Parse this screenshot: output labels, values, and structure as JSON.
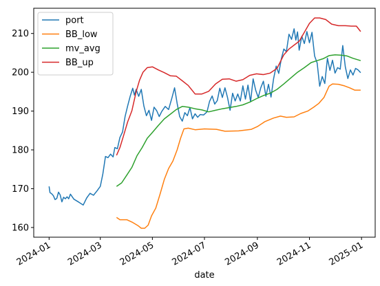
{
  "chart_data": {
    "type": "line",
    "title": "",
    "xlabel": "date",
    "ylabel": "",
    "x_ticks": [
      "2024-01",
      "2024-03",
      "2024-05",
      "2024-07",
      "2024-09",
      "2024-11",
      "2025-01"
    ],
    "y_ticks": [
      160,
      170,
      180,
      190,
      200,
      210
    ],
    "xlim": [
      "2023-12-14",
      "2025-01-17"
    ],
    "ylim": [
      157.5,
      216.5
    ],
    "grid": false,
    "legend_position": "top-left",
    "series": [
      {
        "name": "port",
        "color": "#1f77b4",
        "points": [
          [
            "2024-01-01",
            170.6
          ],
          [
            "2024-01-02",
            169.0
          ],
          [
            "2024-01-04",
            168.7
          ],
          [
            "2024-01-06",
            168.2
          ],
          [
            "2024-01-08",
            167.2
          ],
          [
            "2024-01-10",
            167.5
          ],
          [
            "2024-01-12",
            169.1
          ],
          [
            "2024-01-14",
            168.4
          ],
          [
            "2024-01-16",
            166.6
          ],
          [
            "2024-01-18",
            167.8
          ],
          [
            "2024-01-20",
            167.4
          ],
          [
            "2024-01-22",
            167.9
          ],
          [
            "2024-01-24",
            167.4
          ],
          [
            "2024-01-26",
            168.6
          ],
          [
            "2024-01-30",
            167.3
          ],
          [
            "2024-02-05",
            166.5
          ],
          [
            "2024-02-10",
            165.8
          ],
          [
            "2024-02-14",
            167.6
          ],
          [
            "2024-02-18",
            168.8
          ],
          [
            "2024-02-22",
            168.3
          ],
          [
            "2024-02-26",
            169.4
          ],
          [
            "2024-03-01",
            170.6
          ],
          [
            "2024-03-04",
            173.8
          ],
          [
            "2024-03-07",
            178.3
          ],
          [
            "2024-03-10",
            178.0
          ],
          [
            "2024-03-13",
            178.9
          ],
          [
            "2024-03-16",
            178.2
          ],
          [
            "2024-03-18",
            180.6
          ],
          [
            "2024-03-21",
            180.3
          ],
          [
            "2024-03-24",
            183.2
          ],
          [
            "2024-03-27",
            184.6
          ],
          [
            "2024-03-30",
            188.6
          ],
          [
            "2024-04-02",
            191.3
          ],
          [
            "2024-04-05",
            193.8
          ],
          [
            "2024-04-08",
            195.9
          ],
          [
            "2024-04-10",
            194.1
          ],
          [
            "2024-04-12",
            195.6
          ],
          [
            "2024-04-15",
            193.8
          ],
          [
            "2024-04-18",
            195.6
          ],
          [
            "2024-04-21",
            191.3
          ],
          [
            "2024-04-24",
            188.8
          ],
          [
            "2024-04-27",
            190.2
          ],
          [
            "2024-04-30",
            187.6
          ],
          [
            "2024-05-03",
            191.0
          ],
          [
            "2024-05-06",
            190.1
          ],
          [
            "2024-05-09",
            188.6
          ],
          [
            "2024-05-12",
            189.9
          ],
          [
            "2024-05-16",
            191.2
          ],
          [
            "2024-05-20",
            190.4
          ],
          [
            "2024-05-24",
            193.5
          ],
          [
            "2024-05-27",
            196.0
          ],
          [
            "2024-05-30",
            192.0
          ],
          [
            "2024-06-02",
            188.6
          ],
          [
            "2024-06-05",
            187.4
          ],
          [
            "2024-06-08",
            189.6
          ],
          [
            "2024-06-11",
            188.8
          ],
          [
            "2024-06-14",
            190.9
          ],
          [
            "2024-06-17",
            188.0
          ],
          [
            "2024-06-20",
            189.3
          ],
          [
            "2024-06-23",
            188.4
          ],
          [
            "2024-06-26",
            189.1
          ],
          [
            "2024-06-30",
            189.0
          ],
          [
            "2024-07-04",
            189.8
          ],
          [
            "2024-07-07",
            192.5
          ],
          [
            "2024-07-10",
            193.9
          ],
          [
            "2024-07-13",
            191.8
          ],
          [
            "2024-07-16",
            192.7
          ],
          [
            "2024-07-19",
            195.9
          ],
          [
            "2024-07-22",
            193.5
          ],
          [
            "2024-07-25",
            196.0
          ],
          [
            "2024-07-28",
            193.5
          ],
          [
            "2024-07-31",
            190.2
          ],
          [
            "2024-08-03",
            194.6
          ],
          [
            "2024-08-06",
            192.6
          ],
          [
            "2024-08-09",
            194.4
          ],
          [
            "2024-08-12",
            192.6
          ],
          [
            "2024-08-15",
            196.5
          ],
          [
            "2024-08-18",
            193.1
          ],
          [
            "2024-08-21",
            196.7
          ],
          [
            "2024-08-24",
            192.4
          ],
          [
            "2024-08-27",
            198.3
          ],
          [
            "2024-08-30",
            195.4
          ],
          [
            "2024-09-02",
            193.5
          ],
          [
            "2024-09-05",
            196.0
          ],
          [
            "2024-09-08",
            197.7
          ],
          [
            "2024-09-11",
            193.8
          ],
          [
            "2024-09-14",
            196.9
          ],
          [
            "2024-09-17",
            193.6
          ],
          [
            "2024-09-20",
            198.3
          ],
          [
            "2024-09-23",
            201.6
          ],
          [
            "2024-09-26",
            199.7
          ],
          [
            "2024-09-29",
            203.4
          ],
          [
            "2024-10-02",
            206.0
          ],
          [
            "2024-10-05",
            205.3
          ],
          [
            "2024-10-08",
            209.8
          ],
          [
            "2024-10-11",
            208.5
          ],
          [
            "2024-10-14",
            211.2
          ],
          [
            "2024-10-16",
            208.3
          ],
          [
            "2024-10-18",
            210.4
          ],
          [
            "2024-10-20",
            205.7
          ],
          [
            "2024-10-23",
            209.3
          ],
          [
            "2024-10-26",
            207.4
          ],
          [
            "2024-10-29",
            210.5
          ],
          [
            "2024-11-01",
            207.6
          ],
          [
            "2024-11-04",
            210.3
          ],
          [
            "2024-11-07",
            204.2
          ],
          [
            "2024-11-10",
            202.4
          ],
          [
            "2024-11-13",
            196.4
          ],
          [
            "2024-11-16",
            198.9
          ],
          [
            "2024-11-19",
            197.1
          ],
          [
            "2024-11-22",
            203.6
          ],
          [
            "2024-11-25",
            200.5
          ],
          [
            "2024-11-28",
            203.1
          ],
          [
            "2024-12-01",
            199.8
          ],
          [
            "2024-12-04",
            201.2
          ],
          [
            "2024-12-07",
            200.8
          ],
          [
            "2024-12-10",
            206.9
          ],
          [
            "2024-12-13",
            201.4
          ],
          [
            "2024-12-16",
            198.4
          ],
          [
            "2024-12-19",
            200.6
          ],
          [
            "2024-12-22",
            199.3
          ],
          [
            "2024-12-25",
            201.0
          ],
          [
            "2024-12-28",
            200.6
          ],
          [
            "2024-12-31",
            199.9
          ]
        ]
      },
      {
        "name": "BB_low",
        "color": "#ff7f0e",
        "points": [
          [
            "2024-03-20",
            162.6
          ],
          [
            "2024-03-24",
            162.0
          ],
          [
            "2024-04-01",
            162.0
          ],
          [
            "2024-04-08",
            161.3
          ],
          [
            "2024-04-14",
            160.5
          ],
          [
            "2024-04-18",
            159.8
          ],
          [
            "2024-04-22",
            159.8
          ],
          [
            "2024-04-26",
            160.6
          ],
          [
            "2024-04-30",
            163.0
          ],
          [
            "2024-05-05",
            165.0
          ],
          [
            "2024-05-10",
            168.6
          ],
          [
            "2024-05-15",
            172.4
          ],
          [
            "2024-05-20",
            175.2
          ],
          [
            "2024-05-25",
            177.1
          ],
          [
            "2024-05-30",
            180.0
          ],
          [
            "2024-06-03",
            183.0
          ],
          [
            "2024-06-07",
            185.4
          ],
          [
            "2024-06-12",
            185.6
          ],
          [
            "2024-06-20",
            185.2
          ],
          [
            "2024-07-01",
            185.4
          ],
          [
            "2024-07-15",
            185.3
          ],
          [
            "2024-07-25",
            184.8
          ],
          [
            "2024-08-10",
            184.9
          ],
          [
            "2024-08-25",
            185.3
          ],
          [
            "2024-09-01",
            186.0
          ],
          [
            "2024-09-10",
            187.3
          ],
          [
            "2024-09-20",
            188.2
          ],
          [
            "2024-09-28",
            188.7
          ],
          [
            "2024-10-05",
            188.4
          ],
          [
            "2024-10-14",
            188.5
          ],
          [
            "2024-10-22",
            189.4
          ],
          [
            "2024-10-30",
            190.0
          ],
          [
            "2024-11-06",
            191.0
          ],
          [
            "2024-11-12",
            192.0
          ],
          [
            "2024-11-18",
            193.5
          ],
          [
            "2024-11-24",
            196.4
          ],
          [
            "2024-11-28",
            197.0
          ],
          [
            "2024-12-05",
            196.9
          ],
          [
            "2024-12-12",
            196.5
          ],
          [
            "2024-12-18",
            196.0
          ],
          [
            "2024-12-24",
            195.4
          ],
          [
            "2024-12-31",
            195.4
          ]
        ]
      },
      {
        "name": "mv_avg",
        "color": "#2ca02c",
        "points": [
          [
            "2024-03-20",
            170.6
          ],
          [
            "2024-03-26",
            171.5
          ],
          [
            "2024-04-01",
            173.5
          ],
          [
            "2024-04-07",
            175.5
          ],
          [
            "2024-04-13",
            178.5
          ],
          [
            "2024-04-19",
            180.6
          ],
          [
            "2024-04-25",
            183.0
          ],
          [
            "2024-05-01",
            184.5
          ],
          [
            "2024-05-08",
            186.3
          ],
          [
            "2024-05-15",
            188.0
          ],
          [
            "2024-05-22",
            189.2
          ],
          [
            "2024-05-29",
            190.4
          ],
          [
            "2024-06-05",
            191.2
          ],
          [
            "2024-06-12",
            191.0
          ],
          [
            "2024-06-20",
            190.6
          ],
          [
            "2024-06-28",
            190.3
          ],
          [
            "2024-07-06",
            189.8
          ],
          [
            "2024-07-14",
            190.2
          ],
          [
            "2024-07-22",
            190.6
          ],
          [
            "2024-07-30",
            190.9
          ],
          [
            "2024-08-07",
            191.2
          ],
          [
            "2024-08-15",
            191.6
          ],
          [
            "2024-08-23",
            192.3
          ],
          [
            "2024-08-31",
            193.2
          ],
          [
            "2024-09-08",
            194.0
          ],
          [
            "2024-09-16",
            194.6
          ],
          [
            "2024-09-24",
            195.6
          ],
          [
            "2024-10-02",
            197.0
          ],
          [
            "2024-10-10",
            198.5
          ],
          [
            "2024-10-18",
            200.0
          ],
          [
            "2024-10-26",
            201.2
          ],
          [
            "2024-11-03",
            202.5
          ],
          [
            "2024-11-10",
            203.0
          ],
          [
            "2024-11-17",
            203.5
          ],
          [
            "2024-11-24",
            204.3
          ],
          [
            "2024-12-01",
            204.5
          ],
          [
            "2024-12-08",
            204.4
          ],
          [
            "2024-12-15",
            204.2
          ],
          [
            "2024-12-22",
            203.6
          ],
          [
            "2024-12-31",
            203.0
          ]
        ]
      },
      {
        "name": "BB_up",
        "color": "#d62728",
        "points": [
          [
            "2024-03-20",
            178.6
          ],
          [
            "2024-03-24",
            180.6
          ],
          [
            "2024-03-28",
            183.5
          ],
          [
            "2024-04-02",
            187.2
          ],
          [
            "2024-04-07",
            190.1
          ],
          [
            "2024-04-12",
            195.0
          ],
          [
            "2024-04-16",
            198.0
          ],
          [
            "2024-04-20",
            200.0
          ],
          [
            "2024-04-25",
            201.2
          ],
          [
            "2024-05-01",
            201.4
          ],
          [
            "2024-05-08",
            200.6
          ],
          [
            "2024-05-15",
            199.9
          ],
          [
            "2024-05-22",
            199.1
          ],
          [
            "2024-05-29",
            199.0
          ],
          [
            "2024-06-05",
            197.8
          ],
          [
            "2024-06-12",
            196.6
          ],
          [
            "2024-06-20",
            194.4
          ],
          [
            "2024-06-28",
            194.4
          ],
          [
            "2024-07-06",
            195.1
          ],
          [
            "2024-07-14",
            197.0
          ],
          [
            "2024-07-22",
            198.2
          ],
          [
            "2024-07-30",
            198.3
          ],
          [
            "2024-08-07",
            197.7
          ],
          [
            "2024-08-15",
            198.1
          ],
          [
            "2024-08-23",
            199.2
          ],
          [
            "2024-08-31",
            199.6
          ],
          [
            "2024-09-08",
            199.4
          ],
          [
            "2024-09-16",
            199.8
          ],
          [
            "2024-09-24",
            201.0
          ],
          [
            "2024-10-02",
            204.5
          ],
          [
            "2024-10-08",
            206.0
          ],
          [
            "2024-10-14",
            207.0
          ],
          [
            "2024-10-20",
            208.0
          ],
          [
            "2024-10-26",
            210.3
          ],
          [
            "2024-11-01",
            212.6
          ],
          [
            "2024-11-07",
            214.0
          ],
          [
            "2024-11-13",
            214.0
          ],
          [
            "2024-11-20",
            213.6
          ],
          [
            "2024-11-27",
            212.4
          ],
          [
            "2024-12-05",
            212.0
          ],
          [
            "2024-12-13",
            212.0
          ],
          [
            "2024-12-20",
            211.9
          ],
          [
            "2024-12-26",
            211.9
          ],
          [
            "2024-12-31",
            210.5
          ]
        ]
      }
    ]
  }
}
